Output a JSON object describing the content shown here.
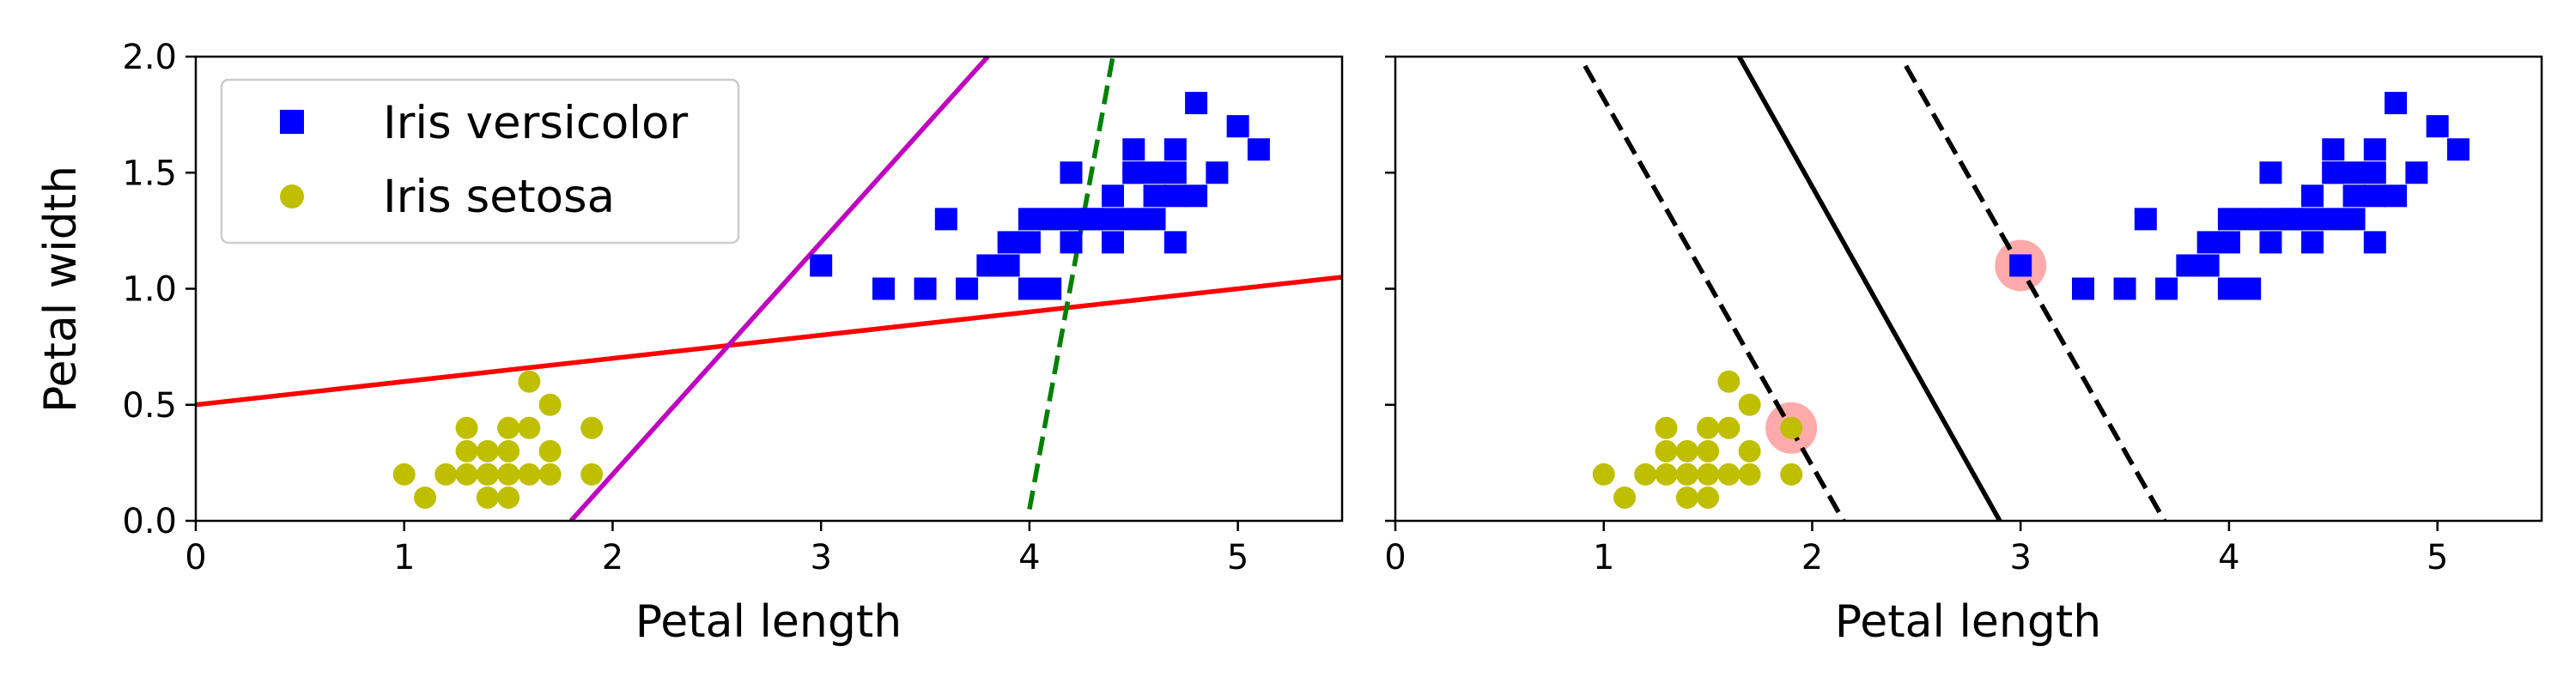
{
  "chart_data": [
    {
      "type": "scatter",
      "xlabel": "Petal length",
      "ylabel": "Petal width",
      "xlim": [
        0,
        5.5
      ],
      "ylim": [
        0,
        2.0
      ],
      "xticks": [
        "0",
        "1",
        "2",
        "3",
        "4",
        "5"
      ],
      "yticks": [
        "0.0",
        "0.5",
        "1.0",
        "1.5",
        "2.0"
      ],
      "legend_position": "top-left",
      "series": [
        {
          "name": "Iris versicolor",
          "marker": "square",
          "color": "#0000ff",
          "x": [
            3.0,
            3.3,
            3.5,
            3.6,
            3.7,
            3.8,
            3.9,
            3.9,
            4.0,
            4.0,
            4.0,
            4.1,
            4.1,
            4.2,
            4.2,
            4.2,
            4.3,
            4.3,
            4.4,
            4.4,
            4.4,
            4.5,
            4.5,
            4.5,
            4.5,
            4.6,
            4.6,
            4.6,
            4.7,
            4.7,
            4.7,
            4.7,
            4.8,
            4.8,
            4.9,
            5.0,
            5.1
          ],
          "y": [
            1.1,
            1.0,
            1.0,
            1.3,
            1.0,
            1.1,
            1.1,
            1.2,
            1.0,
            1.3,
            1.2,
            1.0,
            1.3,
            1.3,
            1.5,
            1.2,
            1.3,
            1.3,
            1.4,
            1.2,
            1.3,
            1.5,
            1.6,
            1.3,
            1.5,
            1.5,
            1.4,
            1.3,
            1.4,
            1.6,
            1.2,
            1.5,
            1.8,
            1.4,
            1.5,
            1.7,
            1.6
          ]
        },
        {
          "name": "Iris setosa",
          "marker": "circle",
          "color": "#bfbf00",
          "x": [
            1.0,
            1.1,
            1.2,
            1.3,
            1.3,
            1.3,
            1.4,
            1.4,
            1.4,
            1.4,
            1.5,
            1.5,
            1.5,
            1.5,
            1.6,
            1.6,
            1.6,
            1.7,
            1.7,
            1.7,
            1.9,
            1.9
          ],
          "y": [
            0.2,
            0.1,
            0.2,
            0.2,
            0.3,
            0.4,
            0.1,
            0.2,
            0.3,
            0.2,
            0.1,
            0.2,
            0.3,
            0.4,
            0.2,
            0.4,
            0.6,
            0.3,
            0.5,
            0.2,
            0.4,
            0.2
          ]
        }
      ],
      "lines": [
        {
          "color": "#ff0000",
          "style": "solid",
          "points": [
            [
              0,
              0.5
            ],
            [
              5.5,
              1.05
            ]
          ]
        },
        {
          "color": "#bf00bf",
          "style": "solid",
          "points": [
            [
              1.8,
              0.0
            ],
            [
              3.8,
              2.0
            ]
          ]
        },
        {
          "color": "#008000",
          "style": "dashed",
          "points": [
            [
              4.0,
              0.05
            ],
            [
              4.4,
              2.0
            ]
          ]
        }
      ]
    },
    {
      "type": "scatter",
      "xlabel": "Petal length",
      "ylabel": "",
      "xlim": [
        0,
        5.5
      ],
      "ylim": [
        0,
        2.0
      ],
      "xticks": [
        "0",
        "1",
        "2",
        "3",
        "4",
        "5"
      ],
      "support_vectors": {
        "color": "#ffaaaa",
        "points": [
          [
            3.0,
            1.1
          ],
          [
            1.9,
            0.4
          ]
        ]
      },
      "lines": [
        {
          "color": "#000000",
          "style": "solid",
          "points": [
            [
              1.65,
              2.0
            ],
            [
              2.9,
              0.0
            ]
          ]
        },
        {
          "color": "#000000",
          "style": "dashed",
          "points": [
            [
              0.91,
              1.96
            ],
            [
              2.15,
              0.0
            ]
          ]
        },
        {
          "color": "#000000",
          "style": "dashed",
          "points": [
            [
              2.45,
              1.96
            ],
            [
              3.69,
              0.0
            ]
          ]
        }
      ]
    }
  ]
}
